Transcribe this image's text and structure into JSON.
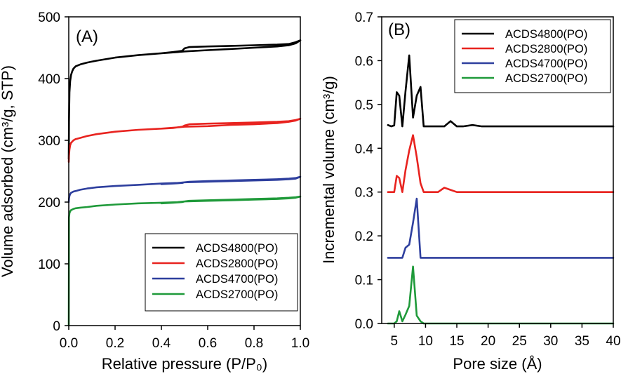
{
  "chart_data": [
    {
      "type": "line",
      "panel_label": "(A)",
      "xlabel": "Relative pressure (P/P₀)",
      "ylabel": "Volume adsorbed (cm³/g, STP)",
      "xlim": [
        0.0,
        1.0
      ],
      "ylim": [
        0,
        500
      ],
      "xticks": [
        "0.0",
        "0.2",
        "0.4",
        "0.6",
        "0.8",
        "1.0"
      ],
      "yticks": [
        "0",
        "100",
        "200",
        "300",
        "400",
        "500"
      ],
      "grid": false,
      "legend_position": "bottom-right",
      "series": [
        {
          "name": "ACDS4800(PO)",
          "color": "#000000",
          "x": [
            0.0,
            0.001,
            0.003,
            0.006,
            0.01,
            0.015,
            0.02,
            0.03,
            0.05,
            0.08,
            0.12,
            0.2,
            0.3,
            0.4,
            0.47,
            0.5,
            0.6,
            0.7,
            0.8,
            0.9,
            0.95,
            0.98,
            1.0,
            0.98,
            0.95,
            0.9,
            0.8,
            0.7,
            0.6,
            0.52,
            0.5,
            0.49,
            0.45,
            0.4
          ],
          "y": [
            270,
            330,
            378,
            396,
            406,
            412,
            416,
            420,
            423,
            426,
            429,
            434,
            438,
            441,
            443,
            444,
            446,
            448,
            450,
            452,
            454,
            457,
            462,
            459,
            456,
            455,
            454,
            453,
            452,
            451,
            449,
            445,
            443,
            441
          ]
        },
        {
          "name": "ACDS2800(PO)",
          "color": "#e8231f",
          "x": [
            0.0,
            0.001,
            0.003,
            0.006,
            0.01,
            0.015,
            0.02,
            0.03,
            0.05,
            0.08,
            0.12,
            0.2,
            0.3,
            0.4,
            0.47,
            0.5,
            0.6,
            0.7,
            0.8,
            0.9,
            0.95,
            0.98,
            1.0,
            0.98,
            0.95,
            0.9,
            0.8,
            0.7,
            0.6,
            0.52,
            0.5,
            0.49,
            0.45,
            0.4
          ],
          "y": [
            265,
            275,
            285,
            292,
            296,
            298,
            300,
            302,
            304,
            307,
            310,
            314,
            317,
            319,
            321,
            322,
            323,
            325,
            326,
            328,
            330,
            332,
            335,
            333,
            331,
            330,
            329,
            328,
            327,
            326,
            324,
            322,
            320,
            319
          ]
        },
        {
          "name": "ACDS4700(PO)",
          "color": "#2e3f9e",
          "x": [
            0.0,
            0.001,
            0.003,
            0.006,
            0.01,
            0.015,
            0.02,
            0.03,
            0.05,
            0.08,
            0.12,
            0.2,
            0.3,
            0.4,
            0.47,
            0.5,
            0.6,
            0.7,
            0.8,
            0.9,
            0.95,
            0.98,
            1.0,
            0.98,
            0.95,
            0.9,
            0.8,
            0.7,
            0.6,
            0.52,
            0.5,
            0.49,
            0.45,
            0.4
          ],
          "y": [
            200,
            205,
            210,
            213,
            215,
            216,
            217,
            218,
            220,
            222,
            224,
            226,
            228,
            230,
            231,
            232,
            233,
            234,
            235,
            236,
            237,
            238,
            241,
            239,
            238,
            237,
            236,
            235,
            234,
            233,
            232,
            231,
            230,
            229
          ]
        },
        {
          "name": "ACDS2700(PO)",
          "color": "#1f9a3a",
          "x": [
            0.0,
            0.001,
            0.003,
            0.006,
            0.01,
            0.015,
            0.02,
            0.03,
            0.05,
            0.08,
            0.12,
            0.2,
            0.3,
            0.4,
            0.47,
            0.5,
            0.6,
            0.7,
            0.8,
            0.9,
            0.95,
            0.98,
            1.0,
            0.98,
            0.95,
            0.9,
            0.8,
            0.7,
            0.6,
            0.52,
            0.5,
            0.49,
            0.45,
            0.4
          ],
          "y": [
            0,
            175,
            182,
            185,
            187,
            188,
            189,
            190,
            191,
            192,
            194,
            196,
            198,
            199,
            200,
            201,
            202,
            203,
            204,
            205,
            206,
            207,
            209,
            208,
            207,
            206,
            205,
            204,
            203,
            202,
            201,
            200,
            199,
            198
          ]
        }
      ]
    },
    {
      "type": "line",
      "panel_label": "(B)",
      "xlabel": "Pore size (Å)",
      "ylabel": "Incremental volume (cm³/g)",
      "xlim": [
        3,
        40
      ],
      "ylim": [
        0.0,
        0.7
      ],
      "xticks": [
        "5",
        "10",
        "15",
        "20",
        "25",
        "30",
        "35",
        "40"
      ],
      "yticks": [
        "0.0",
        "0.1",
        "0.2",
        "0.3",
        "0.4",
        "0.5",
        "0.6",
        "0.7"
      ],
      "grid": false,
      "legend_position": "top-right",
      "series": [
        {
          "name": "ACDS4800(PO)",
          "color": "#000000",
          "x": [
            4.0,
            4.5,
            5.0,
            5.4,
            5.8,
            6.3,
            6.8,
            7.4,
            8.0,
            8.6,
            9.2,
            9.7,
            10.5,
            12.0,
            13.0,
            14.0,
            15.0,
            16.0,
            17.5,
            19.0,
            25.0,
            30.0,
            35.0,
            40.0
          ],
          "y": [
            0.453,
            0.45,
            0.452,
            0.528,
            0.52,
            0.45,
            0.53,
            0.612,
            0.47,
            0.52,
            0.54,
            0.45,
            0.45,
            0.45,
            0.45,
            0.462,
            0.45,
            0.45,
            0.453,
            0.45,
            0.45,
            0.45,
            0.45,
            0.45
          ]
        },
        {
          "name": "ACDS2800(PO)",
          "color": "#e8231f",
          "x": [
            4.0,
            4.5,
            5.0,
            5.4,
            5.8,
            6.3,
            6.8,
            7.4,
            8.0,
            8.6,
            9.2,
            9.7,
            10.5,
            12.0,
            13.0,
            14.0,
            15.0,
            16.0,
            17.5,
            19.0,
            25.0,
            30.0,
            35.0,
            40.0
          ],
          "y": [
            0.3,
            0.3,
            0.3,
            0.337,
            0.332,
            0.3,
            0.35,
            0.395,
            0.43,
            0.38,
            0.32,
            0.3,
            0.3,
            0.3,
            0.31,
            0.305,
            0.3,
            0.3,
            0.3,
            0.3,
            0.3,
            0.3,
            0.3,
            0.3
          ]
        },
        {
          "name": "ACDS4700(PO)",
          "color": "#2e3f9e",
          "x": [
            4.0,
            4.5,
            5.0,
            5.4,
            5.8,
            6.3,
            6.8,
            7.4,
            8.0,
            8.6,
            9.2,
            9.7,
            10.5,
            12.0,
            13.0,
            14.0,
            15.0,
            16.0,
            17.5,
            19.0,
            25.0,
            30.0,
            35.0,
            40.0
          ],
          "y": [
            0.15,
            0.15,
            0.15,
            0.15,
            0.15,
            0.15,
            0.173,
            0.18,
            0.23,
            0.285,
            0.15,
            0.15,
            0.15,
            0.15,
            0.15,
            0.15,
            0.15,
            0.15,
            0.15,
            0.15,
            0.15,
            0.15,
            0.15,
            0.15
          ]
        },
        {
          "name": "ACDS2700(PO)",
          "color": "#1f9a3a",
          "x": [
            4.0,
            4.5,
            5.0,
            5.4,
            5.8,
            6.3,
            6.8,
            7.4,
            8.0,
            8.6,
            9.2,
            9.7,
            10.5,
            12.0,
            13.0,
            14.0,
            15.0,
            16.0,
            17.5,
            19.0,
            25.0,
            30.0,
            35.0,
            40.0
          ],
          "y": [
            0.0,
            0.0,
            0.0,
            0.005,
            0.028,
            0.005,
            0.02,
            0.04,
            0.13,
            0.018,
            0.005,
            0.0,
            0.0,
            0.0,
            0.0,
            0.0,
            0.0,
            0.0,
            0.0,
            0.0,
            0.0,
            0.0,
            0.0,
            0.0
          ]
        }
      ]
    }
  ]
}
